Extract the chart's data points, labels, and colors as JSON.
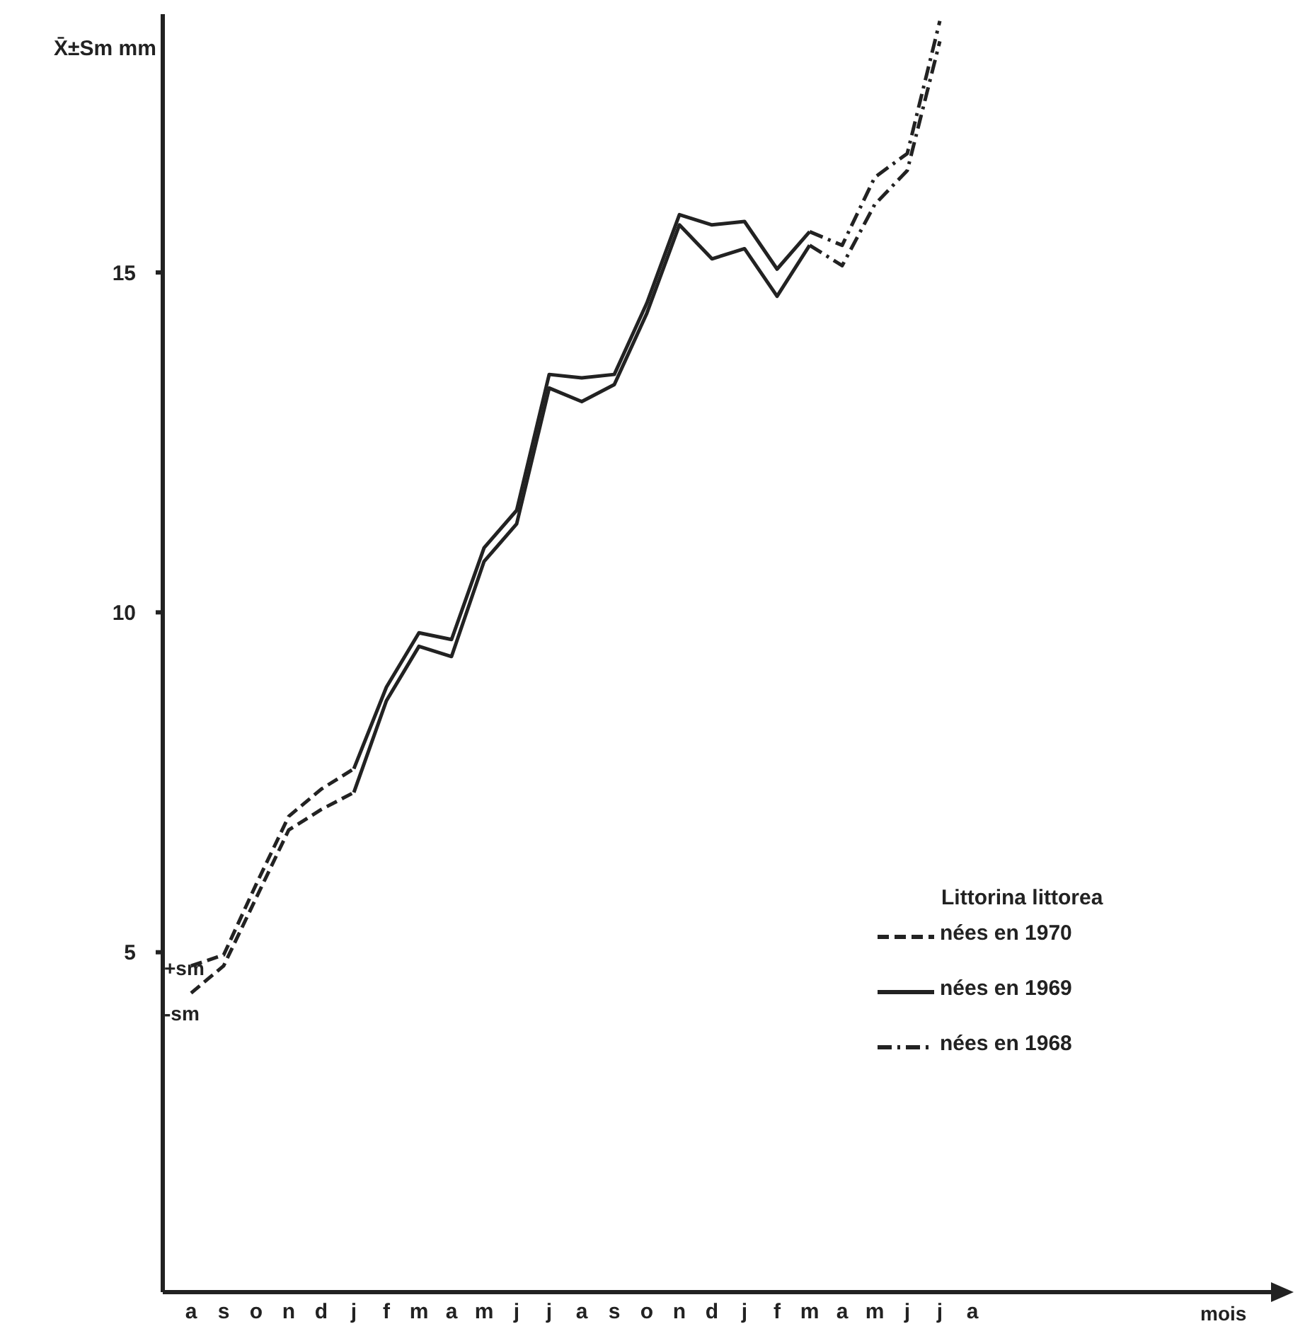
{
  "chart_data": {
    "type": "line",
    "ylabel": "X̄±Sm mm",
    "legend_title": "Littorina littorea",
    "legend": "bottom right",
    "grid": false,
    "categories": [
      "a",
      "s",
      "o",
      "n",
      "d",
      "j",
      "f",
      "m",
      "a",
      "m",
      "j",
      "j",
      "a",
      "s",
      "o",
      "n",
      "d",
      "j",
      "f",
      "m",
      "a",
      "m",
      "j",
      "j",
      "a"
    ],
    "ylim": [
      0,
      18.8
    ],
    "yticks": [
      5,
      10,
      15
    ],
    "annotations": [
      "+sm",
      "-sm",
      "mois"
    ],
    "series": [
      {
        "name": "nées en 1970",
        "color": "#222222",
        "line_style": "dashed",
        "values": [
          4.8,
          4.96,
          6.0,
          7.0,
          7.4,
          7.7,
          null,
          null,
          null,
          null,
          null,
          null,
          null,
          null,
          null,
          null,
          null,
          null,
          null,
          null,
          null,
          null,
          null,
          null,
          null
        ]
      },
      {
        "color": "#222222",
        "line_style": "dashed",
        "values": [
          4.4,
          4.8,
          5.8,
          6.8,
          7.1,
          7.35,
          null,
          null,
          null,
          null,
          null,
          null,
          null,
          null,
          null,
          null,
          null,
          null,
          null,
          null,
          null,
          null,
          null,
          null,
          null
        ]
      },
      {
        "name": "nées en 1969",
        "color": "#222222",
        "line_style": "solid",
        "values": [
          null,
          null,
          null,
          null,
          null,
          7.7,
          8.9,
          9.7,
          9.6,
          10.95,
          11.5,
          13.5,
          13.45,
          13.5,
          14.55,
          15.85,
          15.7,
          15.75,
          15.05,
          15.6,
          null,
          null,
          null,
          null,
          null
        ]
      },
      {
        "color": "#222222",
        "line_style": "solid",
        "values": [
          null,
          null,
          null,
          null,
          null,
          7.35,
          8.7,
          9.5,
          9.35,
          10.75,
          11.3,
          13.3,
          13.1,
          13.35,
          14.4,
          15.7,
          15.2,
          15.35,
          14.65,
          15.4,
          null,
          null,
          null,
          null,
          null
        ]
      },
      {
        "name": "nées en 1968",
        "color": "#222222",
        "line_style": "dashdot",
        "values": [
          null,
          null,
          null,
          null,
          null,
          null,
          null,
          null,
          null,
          null,
          null,
          null,
          null,
          null,
          null,
          null,
          null,
          null,
          null,
          15.6,
          15.4,
          16.4,
          16.75,
          18.7,
          null
        ]
      },
      {
        "color": "#222222",
        "line_style": "dashdot",
        "values": [
          null,
          null,
          null,
          null,
          null,
          null,
          null,
          null,
          null,
          null,
          null,
          null,
          null,
          null,
          null,
          null,
          null,
          null,
          null,
          15.4,
          15.1,
          16.0,
          16.5,
          18.4,
          null
        ]
      }
    ]
  }
}
